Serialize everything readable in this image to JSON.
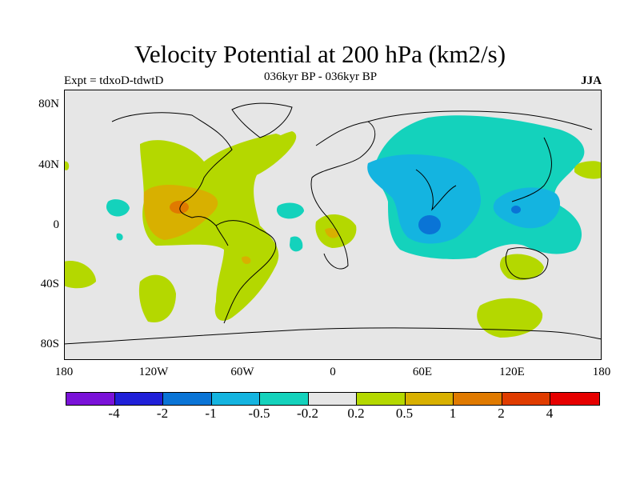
{
  "title": "Velocity Potential at 200 hPa (km2/s)",
  "left_label": "Expt = tdxoD-tdwtD",
  "center_label": "036kyr BP - 036kyr BP",
  "right_label": "JJA",
  "lat_labels": [
    "80N",
    "40N",
    "0",
    "40S",
    "80S"
  ],
  "lon_labels": [
    "180",
    "120W",
    "60W",
    "0",
    "60E",
    "120E",
    "180"
  ],
  "colorbar": {
    "colors": [
      "#7a12d8",
      "#2020d8",
      "#0a74d6",
      "#14b4e0",
      "#14d2bc",
      "#e6e6e6",
      "#b4d800",
      "#d8b000",
      "#e07a00",
      "#e03c00",
      "#e60000"
    ],
    "labels": [
      "-4",
      "-2",
      "-1",
      "-0.5",
      "-0.2",
      "0.2",
      "0.5",
      "1",
      "2",
      "4"
    ]
  },
  "colors": {
    "background": "#e6e6e6",
    "positive_weak": "#b4d800",
    "positive_mid": "#d8b000",
    "positive_strong": "#e07a00",
    "negative_weak": "#14d2bc",
    "negative_mid": "#14b4e0",
    "negative_strong": "#0a74d6",
    "coast": "#000000"
  }
}
